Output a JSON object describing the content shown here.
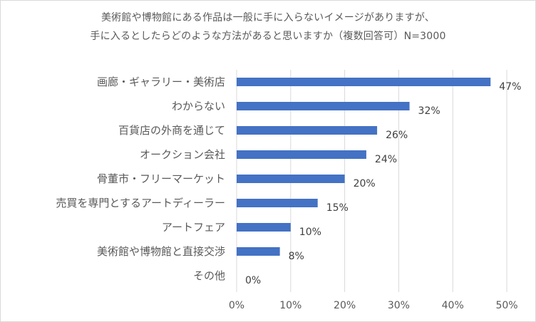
{
  "chart_data": {
    "type": "bar",
    "orientation": "horizontal",
    "title_line1": "美術館や博物館にある作品は一般に手に入らないイメージがありますが、",
    "title_line2": "手に入るとしたらどのような方法があると思いますか（複数回答可）N=3000",
    "categories": [
      "画廊・ギャラリー・美術店",
      "わからない",
      "百貨店の外商を通じて",
      "オークション会社",
      "骨董市・フリーマーケット",
      "売買を専門とするアートディーラー",
      "アートフェア",
      "美術館や博物館と直接交渉",
      "その他"
    ],
    "values": [
      47,
      32,
      26,
      24,
      20,
      15,
      10,
      8,
      0
    ],
    "value_labels": [
      "47%",
      "32%",
      "26%",
      "24%",
      "20%",
      "15%",
      "10%",
      "8%",
      "0%"
    ],
    "xlim": [
      0,
      50
    ],
    "xticks": [
      "0%",
      "10%",
      "20%",
      "30%",
      "40%",
      "50%"
    ],
    "grid": true,
    "colors": {
      "bar": "#4472c4",
      "grid": "#d9d9d9"
    }
  }
}
